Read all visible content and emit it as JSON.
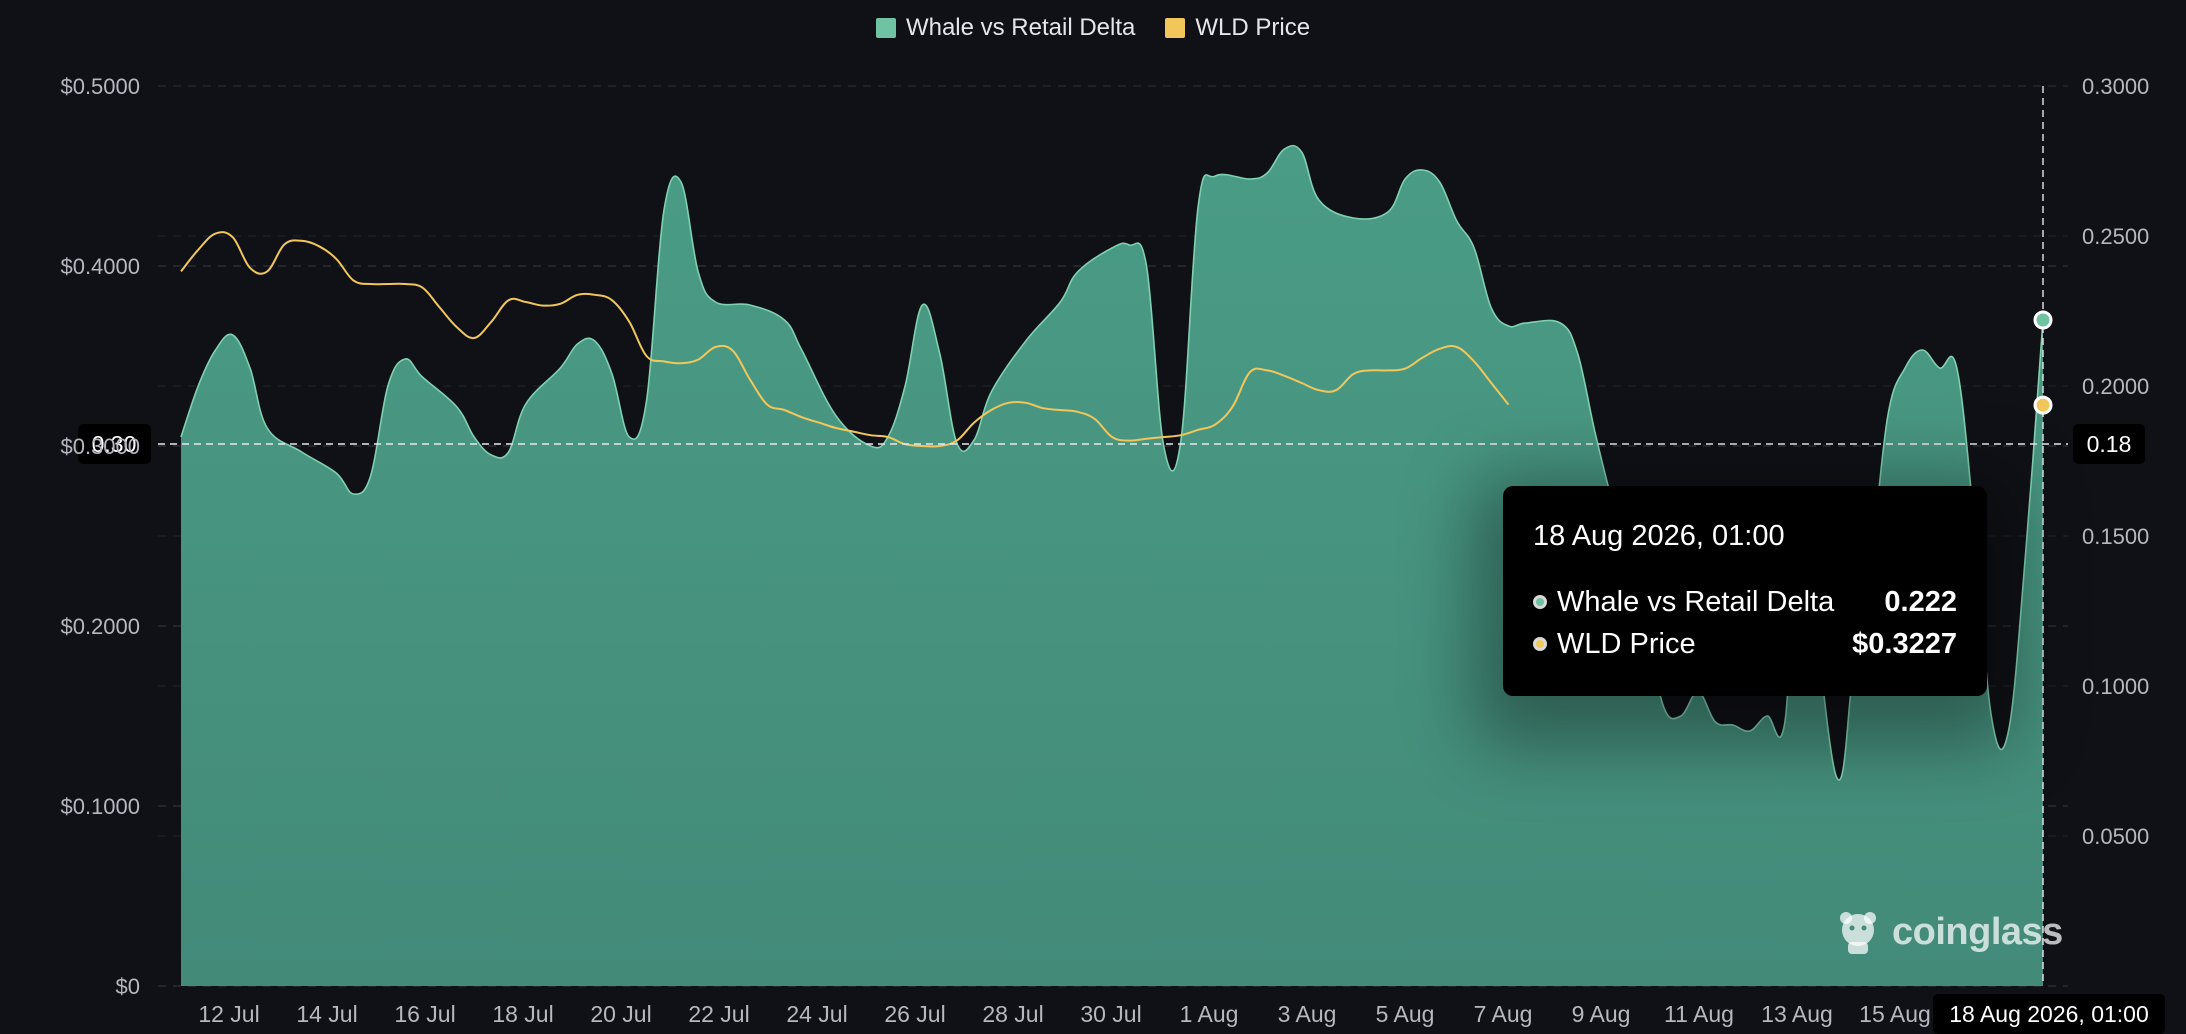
{
  "legend": [
    {
      "label": "Whale vs Retail Delta",
      "color": "#6fc3a2"
    },
    {
      "label": "WLD Price",
      "color": "#f1c75b"
    }
  ],
  "tooltip": {
    "title": "18 Aug 2026, 01:00",
    "rows": [
      {
        "name": "Whale vs Retail Delta",
        "value": "0.222"
      },
      {
        "name": "WLD Price",
        "value": "$0.3227"
      }
    ]
  },
  "crosshair": {
    "left_label": "0.30",
    "right_label": "0.18",
    "x_label": "18 Aug 2026, 01:00"
  },
  "watermark": "coinglass",
  "chart_data": {
    "type": "area",
    "x_ticks": [
      "12 Jul",
      "14 Jul",
      "16 Jul",
      "18 Jul",
      "20 Jul",
      "22 Jul",
      "24 Jul",
      "26 Jul",
      "28 Jul",
      "30 Jul",
      "1 Aug",
      "3 Aug",
      "5 Aug",
      "7 Aug",
      "9 Aug",
      "11 Aug",
      "13 Aug",
      "15 Aug"
    ],
    "left_axis": {
      "ticks": [
        "$0",
        "$0.1000",
        "$0.2000",
        "$0.3000",
        "$0.4000",
        "$0.5000"
      ],
      "range": [
        0,
        0.5
      ]
    },
    "right_axis": {
      "ticks": [
        "0.0500",
        "0.1000",
        "0.1500",
        "0.2000",
        "0.2500",
        "0.3000"
      ],
      "range": [
        0,
        0.3
      ]
    },
    "grid": true,
    "legend_position": "top-center",
    "series": [
      {
        "name": "Whale vs Retail Delta",
        "axis": "right",
        "color": "#6fc3a2",
        "points": [
          [
            0,
            0.183
          ],
          [
            0.25,
            0.2
          ],
          [
            0.5,
            0.212
          ],
          [
            0.75,
            0.217
          ],
          [
            1.0,
            0.206
          ],
          [
            1.25,
            0.186
          ],
          [
            1.75,
            0.178
          ],
          [
            2.25,
            0.171
          ],
          [
            2.5,
            0.164
          ],
          [
            2.75,
            0.17
          ],
          [
            3.0,
            0.2
          ],
          [
            3.25,
            0.209
          ],
          [
            3.5,
            0.203
          ],
          [
            4.0,
            0.193
          ],
          [
            4.25,
            0.183
          ],
          [
            4.5,
            0.177
          ],
          [
            4.75,
            0.178
          ],
          [
            5.0,
            0.194
          ],
          [
            5.5,
            0.206
          ],
          [
            5.75,
            0.214
          ],
          [
            6.0,
            0.215
          ],
          [
            6.25,
            0.204
          ],
          [
            6.5,
            0.183
          ],
          [
            6.75,
            0.195
          ],
          [
            7.0,
            0.258
          ],
          [
            7.25,
            0.268
          ],
          [
            7.5,
            0.238
          ],
          [
            7.75,
            0.228
          ],
          [
            8.25,
            0.227
          ],
          [
            8.75,
            0.222
          ],
          [
            9.0,
            0.212
          ],
          [
            9.5,
            0.19
          ],
          [
            10.0,
            0.18
          ],
          [
            10.25,
            0.183
          ],
          [
            10.5,
            0.2
          ],
          [
            10.75,
            0.227
          ],
          [
            11.0,
            0.211
          ],
          [
            11.25,
            0.181
          ],
          [
            11.5,
            0.182
          ],
          [
            11.75,
            0.198
          ],
          [
            12.25,
            0.215
          ],
          [
            12.75,
            0.228
          ],
          [
            13.0,
            0.238
          ],
          [
            13.5,
            0.246
          ],
          [
            13.75,
            0.247
          ],
          [
            14.0,
            0.24
          ],
          [
            14.25,
            0.18
          ],
          [
            14.5,
            0.182
          ],
          [
            14.75,
            0.26
          ],
          [
            15.0,
            0.27
          ],
          [
            15.5,
            0.269
          ],
          [
            15.75,
            0.271
          ],
          [
            16.0,
            0.279
          ],
          [
            16.25,
            0.278
          ],
          [
            16.5,
            0.262
          ],
          [
            17.0,
            0.256
          ],
          [
            17.5,
            0.258
          ],
          [
            17.75,
            0.269
          ],
          [
            18.0,
            0.272
          ],
          [
            18.25,
            0.268
          ],
          [
            18.5,
            0.255
          ],
          [
            18.75,
            0.246
          ],
          [
            19.0,
            0.226
          ],
          [
            19.25,
            0.22
          ],
          [
            19.5,
            0.221
          ],
          [
            20.0,
            0.221
          ],
          [
            20.25,
            0.211
          ],
          [
            20.5,
            0.185
          ],
          [
            20.75,
            0.162
          ],
          [
            21.0,
            0.145
          ],
          [
            21.25,
            0.12
          ],
          [
            21.5,
            0.093
          ],
          [
            21.75,
            0.09
          ],
          [
            22.0,
            0.098
          ],
          [
            22.25,
            0.088
          ],
          [
            22.5,
            0.087
          ],
          [
            22.75,
            0.085
          ],
          [
            23.0,
            0.09
          ],
          [
            23.25,
            0.087
          ],
          [
            23.5,
            0.15
          ],
          [
            24.0,
            0.07
          ],
          [
            24.25,
            0.105
          ],
          [
            24.5,
            0.14
          ],
          [
            24.75,
            0.19
          ],
          [
            25.0,
            0.206
          ],
          [
            25.25,
            0.212
          ],
          [
            25.5,
            0.206
          ],
          [
            25.75,
            0.206
          ],
          [
            26.0,
            0.155
          ],
          [
            26.25,
            0.09
          ],
          [
            26.5,
            0.085
          ],
          [
            26.75,
            0.145
          ],
          [
            27.0,
            0.222
          ]
        ]
      },
      {
        "name": "WLD Price",
        "axis": "left",
        "color": "#f1c75b",
        "points": [
          [
            0,
            0.397
          ],
          [
            0.25,
            0.409
          ],
          [
            0.5,
            0.418
          ],
          [
            0.75,
            0.416
          ],
          [
            1.0,
            0.399
          ],
          [
            1.25,
            0.397
          ],
          [
            1.5,
            0.412
          ],
          [
            1.75,
            0.414
          ],
          [
            2.0,
            0.411
          ],
          [
            2.25,
            0.404
          ],
          [
            2.5,
            0.392
          ],
          [
            2.75,
            0.39
          ],
          [
            3.0,
            0.39
          ],
          [
            3.25,
            0.39
          ],
          [
            3.5,
            0.388
          ],
          [
            3.75,
            0.377
          ],
          [
            4.0,
            0.366
          ],
          [
            4.25,
            0.36
          ],
          [
            4.5,
            0.369
          ],
          [
            4.75,
            0.381
          ],
          [
            5.0,
            0.38
          ],
          [
            5.25,
            0.378
          ],
          [
            5.5,
            0.379
          ],
          [
            5.75,
            0.384
          ],
          [
            6.0,
            0.384
          ],
          [
            6.25,
            0.381
          ],
          [
            6.5,
            0.369
          ],
          [
            6.75,
            0.35
          ],
          [
            7.0,
            0.347
          ],
          [
            7.25,
            0.346
          ],
          [
            7.5,
            0.348
          ],
          [
            7.75,
            0.355
          ],
          [
            8.0,
            0.353
          ],
          [
            8.25,
            0.337
          ],
          [
            8.5,
            0.323
          ],
          [
            8.75,
            0.32
          ],
          [
            9.0,
            0.316
          ],
          [
            9.25,
            0.313
          ],
          [
            9.5,
            0.31
          ],
          [
            9.75,
            0.308
          ],
          [
            10.0,
            0.306
          ],
          [
            10.25,
            0.305
          ],
          [
            10.5,
            0.301
          ],
          [
            10.75,
            0.3
          ],
          [
            11.0,
            0.3
          ],
          [
            11.25,
            0.303
          ],
          [
            11.5,
            0.313
          ],
          [
            11.75,
            0.32
          ],
          [
            12.0,
            0.324
          ],
          [
            12.25,
            0.324
          ],
          [
            12.5,
            0.321
          ],
          [
            12.75,
            0.32
          ],
          [
            13.0,
            0.319
          ],
          [
            13.25,
            0.315
          ],
          [
            13.5,
            0.305
          ],
          [
            13.75,
            0.303
          ],
          [
            14.0,
            0.304
          ],
          [
            14.25,
            0.305
          ],
          [
            14.5,
            0.306
          ],
          [
            14.75,
            0.309
          ],
          [
            15.0,
            0.312
          ],
          [
            15.25,
            0.322
          ],
          [
            15.5,
            0.341
          ],
          [
            15.75,
            0.342
          ],
          [
            16.0,
            0.339
          ],
          [
            16.25,
            0.335
          ],
          [
            16.5,
            0.331
          ],
          [
            16.75,
            0.331
          ],
          [
            17.0,
            0.34
          ],
          [
            17.25,
            0.342
          ],
          [
            17.5,
            0.342
          ],
          [
            17.75,
            0.343
          ],
          [
            18.0,
            0.349
          ],
          [
            18.25,
            0.354
          ],
          [
            18.5,
            0.355
          ],
          [
            18.75,
            0.347
          ],
          [
            19.0,
            0.335
          ],
          [
            19.25,
            0.323
          ]
        ]
      }
    ],
    "highlight": {
      "x_label": "18 Aug 2026, 01:00",
      "whale_vs_retail_delta": 0.222,
      "wld_price": 0.3227
    }
  }
}
